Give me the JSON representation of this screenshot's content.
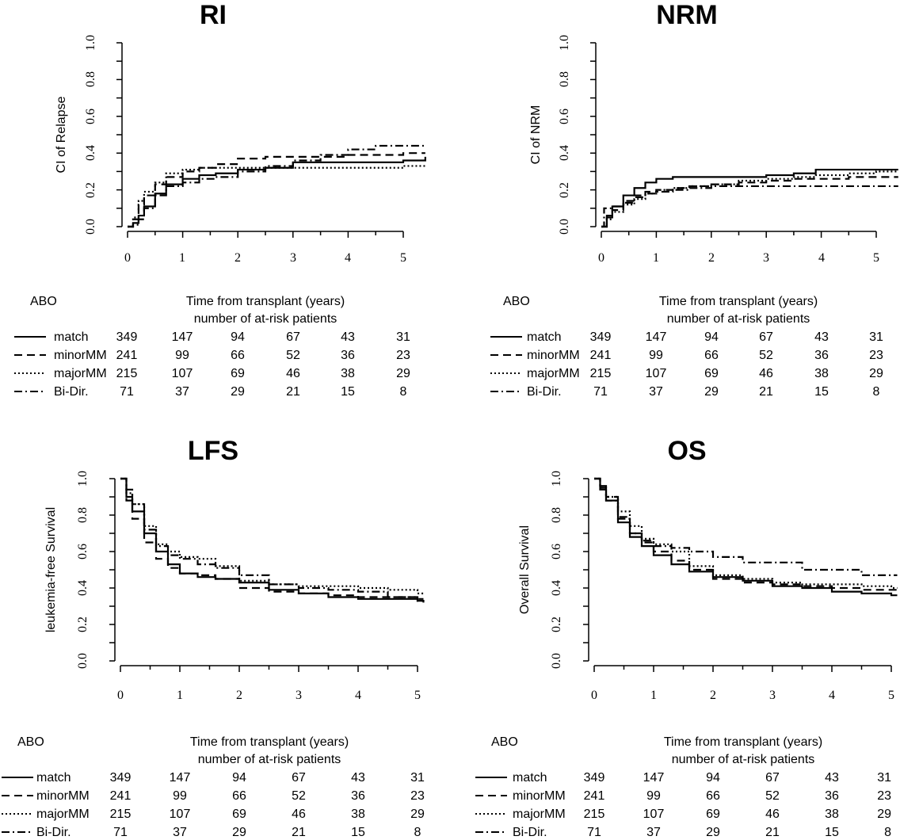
{
  "chart_data": [
    {
      "type": "line",
      "title": "RI",
      "ylabel": "CI of Relapse",
      "xlabel": "Time from transplant (years)",
      "ylim": [
        0,
        1
      ],
      "yticks": [
        "0.0",
        "0.2",
        "0.4",
        "0.6",
        "0.8",
        "1.0"
      ],
      "xticks": [
        "0",
        "1",
        "2",
        "3",
        "4",
        "5"
      ],
      "series": [
        {
          "name": "match",
          "style": "solid",
          "x": [
            0,
            0.1,
            0.2,
            0.3,
            0.5,
            0.7,
            1.0,
            1.3,
            1.6,
            2.0,
            2.5,
            3.0,
            3.5,
            4.0,
            4.5,
            5.0,
            5.4
          ],
          "y": [
            0,
            0.02,
            0.06,
            0.11,
            0.18,
            0.23,
            0.26,
            0.28,
            0.29,
            0.31,
            0.32,
            0.35,
            0.35,
            0.35,
            0.35,
            0.36,
            0.38
          ]
        },
        {
          "name": "minorMM",
          "style": "dashed",
          "x": [
            0,
            0.1,
            0.2,
            0.3,
            0.5,
            0.7,
            1.0,
            1.3,
            1.6,
            2.0,
            2.5,
            3.0,
            3.5,
            4.0,
            4.5,
            5.0,
            5.4
          ],
          "y": [
            0,
            0.04,
            0.12,
            0.17,
            0.23,
            0.27,
            0.3,
            0.32,
            0.34,
            0.37,
            0.38,
            0.38,
            0.38,
            0.39,
            0.39,
            0.4,
            0.4
          ]
        },
        {
          "name": "majorMM",
          "style": "dotted",
          "x": [
            0,
            0.1,
            0.2,
            0.3,
            0.5,
            0.7,
            1.0,
            1.3,
            1.6,
            2.0,
            2.5,
            3.0,
            3.5,
            4.0,
            4.5,
            5.0,
            5.4
          ],
          "y": [
            0,
            0.05,
            0.14,
            0.19,
            0.24,
            0.29,
            0.31,
            0.32,
            0.32,
            0.32,
            0.32,
            0.32,
            0.32,
            0.32,
            0.32,
            0.33,
            0.34
          ]
        },
        {
          "name": "Bi-Dir.",
          "style": "dashdot",
          "x": [
            0,
            0.1,
            0.2,
            0.3,
            0.5,
            0.7,
            1.0,
            1.3,
            1.6,
            2.0,
            2.5,
            3.0,
            3.5,
            4.0,
            4.5,
            5.0,
            5.4
          ],
          "y": [
            0,
            0.01,
            0.04,
            0.1,
            0.17,
            0.22,
            0.24,
            0.26,
            0.27,
            0.3,
            0.33,
            0.36,
            0.39,
            0.42,
            0.44,
            0.44,
            0.44
          ]
        }
      ],
      "risk_table": {
        "group_label": "ABO",
        "header": "Time from transplant (years)",
        "subheader": "number of at-risk patients",
        "rows": [
          {
            "name": "match",
            "counts": [
              "349",
              "147",
              "94",
              "67",
              "43",
              "31"
            ]
          },
          {
            "name": "minorMM",
            "counts": [
              "241",
              "99",
              "66",
              "52",
              "36",
              "23"
            ]
          },
          {
            "name": "majorMM",
            "counts": [
              "215",
              "107",
              "69",
              "46",
              "38",
              "29"
            ]
          },
          {
            "name": "Bi-Dir.",
            "counts": [
              "71",
              "37",
              "29",
              "21",
              "15",
              "8"
            ]
          }
        ]
      }
    },
    {
      "type": "line",
      "title": "NRM",
      "ylabel": "CI of NRM",
      "xlabel": "Time from transplant (years)",
      "ylim": [
        0,
        1
      ],
      "yticks": [
        "0.0",
        "0.2",
        "0.4",
        "0.6",
        "0.8",
        "1.0"
      ],
      "xticks": [
        "0",
        "1",
        "2",
        "3",
        "4",
        "5"
      ],
      "series": [
        {
          "name": "match",
          "style": "solid",
          "x": [
            0,
            0.1,
            0.2,
            0.4,
            0.6,
            0.8,
            1.0,
            1.3,
            1.6,
            2.0,
            2.5,
            3.0,
            3.5,
            3.9,
            4.5,
            5.0,
            5.4
          ],
          "y": [
            0,
            0.06,
            0.11,
            0.17,
            0.21,
            0.24,
            0.26,
            0.27,
            0.27,
            0.27,
            0.27,
            0.28,
            0.29,
            0.31,
            0.31,
            0.31,
            0.31
          ]
        },
        {
          "name": "minorMM",
          "style": "dashed",
          "x": [
            0,
            0.1,
            0.2,
            0.4,
            0.6,
            0.8,
            1.0,
            1.3,
            1.6,
            2.0,
            2.5,
            3.0,
            3.5,
            3.9,
            4.5,
            5.0,
            5.4
          ],
          "y": [
            0,
            0.05,
            0.09,
            0.14,
            0.17,
            0.19,
            0.2,
            0.21,
            0.22,
            0.23,
            0.24,
            0.25,
            0.26,
            0.26,
            0.27,
            0.27,
            0.27
          ]
        },
        {
          "name": "majorMM",
          "style": "dotted",
          "x": [
            0,
            0.1,
            0.2,
            0.4,
            0.6,
            0.8,
            1.0,
            1.3,
            1.6,
            2.0,
            2.5,
            3.0,
            3.5,
            3.9,
            4.5,
            5.0,
            5.4
          ],
          "y": [
            0,
            0.04,
            0.08,
            0.12,
            0.15,
            0.18,
            0.2,
            0.21,
            0.22,
            0.23,
            0.25,
            0.26,
            0.27,
            0.28,
            0.29,
            0.3,
            0.3
          ]
        },
        {
          "name": "Bi-Dir.",
          "style": "dashdot",
          "x": [
            0,
            0.05,
            0.2,
            0.4,
            0.6,
            0.8,
            1.0,
            1.3,
            1.6,
            2.0,
            2.5,
            3.0,
            3.5,
            4.0,
            4.5,
            5.0,
            5.4
          ],
          "y": [
            0,
            0.1,
            0.11,
            0.13,
            0.16,
            0.18,
            0.19,
            0.2,
            0.21,
            0.22,
            0.22,
            0.22,
            0.22,
            0.22,
            0.22,
            0.22,
            0.22
          ]
        }
      ],
      "risk_table": {
        "group_label": "ABO",
        "header": "Time from transplant (years)",
        "subheader": "number of at-risk patients",
        "rows": [
          {
            "name": "match",
            "counts": [
              "349",
              "147",
              "94",
              "67",
              "43",
              "31"
            ]
          },
          {
            "name": "minorMM",
            "counts": [
              "241",
              "99",
              "66",
              "52",
              "36",
              "23"
            ]
          },
          {
            "name": "majorMM",
            "counts": [
              "215",
              "107",
              "69",
              "46",
              "38",
              "29"
            ]
          },
          {
            "name": "Bi-Dir.",
            "counts": [
              "71",
              "37",
              "29",
              "21",
              "15",
              "8"
            ]
          }
        ]
      }
    },
    {
      "type": "line",
      "title": "LFS",
      "ylabel": "leukemia-free Survival",
      "xlabel": "Time from transplant (years)",
      "ylim": [
        0,
        1
      ],
      "yticks": [
        "0.0",
        "0.2",
        "0.4",
        "0.6",
        "0.8",
        "1.0"
      ],
      "xticks": [
        "0",
        "1",
        "2",
        "3",
        "4",
        "5"
      ],
      "series": [
        {
          "name": "match",
          "style": "solid",
          "x": [
            0,
            0.1,
            0.2,
            0.4,
            0.6,
            0.8,
            1.0,
            1.3,
            1.6,
            2.0,
            2.5,
            3.0,
            3.5,
            4.0,
            4.5,
            5.0,
            5.1
          ],
          "y": [
            1,
            0.9,
            0.82,
            0.7,
            0.6,
            0.53,
            0.48,
            0.46,
            0.45,
            0.43,
            0.39,
            0.37,
            0.35,
            0.34,
            0.34,
            0.33,
            0.32
          ]
        },
        {
          "name": "minorMM",
          "style": "dashed",
          "x": [
            0,
            0.1,
            0.2,
            0.4,
            0.6,
            0.8,
            1.0,
            1.3,
            1.6,
            2.0,
            2.5,
            3.0,
            3.5,
            4.0,
            4.5,
            5.0,
            5.1
          ],
          "y": [
            1,
            0.88,
            0.78,
            0.65,
            0.56,
            0.51,
            0.48,
            0.47,
            0.45,
            0.4,
            0.38,
            0.37,
            0.36,
            0.35,
            0.35,
            0.34,
            0.34
          ]
        },
        {
          "name": "majorMM",
          "style": "dotted",
          "x": [
            0,
            0.1,
            0.2,
            0.4,
            0.6,
            0.8,
            1.0,
            1.3,
            1.6,
            2.0,
            2.5,
            3.0,
            3.5,
            4.0,
            4.5,
            5.0,
            5.1
          ],
          "y": [
            1,
            0.92,
            0.86,
            0.74,
            0.64,
            0.6,
            0.57,
            0.56,
            0.52,
            0.44,
            0.42,
            0.41,
            0.41,
            0.4,
            0.39,
            0.37,
            0.37
          ]
        },
        {
          "name": "Bi-Dir.",
          "style": "dashdot",
          "x": [
            0,
            0.1,
            0.2,
            0.4,
            0.6,
            0.8,
            1.0,
            1.3,
            1.6,
            2.0,
            2.5,
            3.0,
            3.5,
            4.0,
            4.5,
            5.0,
            5.1
          ],
          "y": [
            1,
            0.94,
            0.86,
            0.72,
            0.63,
            0.58,
            0.56,
            0.53,
            0.51,
            0.47,
            0.42,
            0.4,
            0.39,
            0.38,
            0.35,
            0.33,
            0.32
          ]
        }
      ],
      "risk_table": {
        "group_label": "ABO",
        "header": "Time from transplant (years)",
        "subheader": "number of at-risk patients",
        "rows": [
          {
            "name": "match",
            "counts": [
              "349",
              "147",
              "94",
              "67",
              "43",
              "31"
            ]
          },
          {
            "name": "minorMM",
            "counts": [
              "241",
              "99",
              "66",
              "52",
              "36",
              "23"
            ]
          },
          {
            "name": "majorMM",
            "counts": [
              "215",
              "107",
              "69",
              "46",
              "38",
              "29"
            ]
          },
          {
            "name": "Bi-Dir.",
            "counts": [
              "71",
              "37",
              "29",
              "21",
              "15",
              "8"
            ]
          }
        ]
      }
    },
    {
      "type": "line",
      "title": "OS",
      "ylabel": "Overall Survival",
      "xlabel": "Time from transplant (years)",
      "ylim": [
        0,
        1
      ],
      "yticks": [
        "0.0",
        "0.2",
        "0.4",
        "0.6",
        "0.8",
        "1.0"
      ],
      "xticks": [
        "0",
        "1",
        "2",
        "3",
        "4",
        "5"
      ],
      "series": [
        {
          "name": "match",
          "style": "solid",
          "x": [
            0,
            0.1,
            0.2,
            0.4,
            0.6,
            0.8,
            1.0,
            1.3,
            1.6,
            2.0,
            2.5,
            3.0,
            3.5,
            4.0,
            4.5,
            5.0,
            5.1
          ],
          "y": [
            1,
            0.95,
            0.88,
            0.76,
            0.68,
            0.63,
            0.58,
            0.53,
            0.49,
            0.46,
            0.44,
            0.41,
            0.4,
            0.38,
            0.37,
            0.36,
            0.36
          ]
        },
        {
          "name": "minorMM",
          "style": "dashed",
          "x": [
            0,
            0.1,
            0.2,
            0.4,
            0.6,
            0.8,
            1.0,
            1.3,
            1.6,
            2.0,
            2.5,
            3.0,
            3.5,
            4.0,
            4.5,
            5.0,
            5.1
          ],
          "y": [
            1,
            0.96,
            0.9,
            0.79,
            0.7,
            0.65,
            0.6,
            0.55,
            0.5,
            0.45,
            0.43,
            0.42,
            0.41,
            0.4,
            0.39,
            0.39,
            0.39
          ]
        },
        {
          "name": "majorMM",
          "style": "dotted",
          "x": [
            0,
            0.1,
            0.2,
            0.4,
            0.6,
            0.8,
            1.0,
            1.3,
            1.6,
            2.0,
            2.5,
            3.0,
            3.5,
            4.0,
            4.5,
            5.0,
            5.1
          ],
          "y": [
            1,
            0.95,
            0.9,
            0.82,
            0.74,
            0.67,
            0.64,
            0.6,
            0.52,
            0.47,
            0.45,
            0.43,
            0.42,
            0.42,
            0.41,
            0.4,
            0.4
          ]
        },
        {
          "name": "Bi-Dir.",
          "style": "dashdot",
          "x": [
            0,
            0.1,
            0.2,
            0.4,
            0.6,
            0.8,
            1.0,
            1.3,
            1.6,
            2.0,
            2.5,
            3.0,
            3.5,
            4.0,
            4.5,
            5.0,
            5.1
          ],
          "y": [
            1,
            0.94,
            0.88,
            0.78,
            0.7,
            0.66,
            0.63,
            0.62,
            0.6,
            0.57,
            0.54,
            0.54,
            0.5,
            0.5,
            0.47,
            0.47,
            0.47
          ]
        }
      ],
      "risk_table": {
        "group_label": "ABO",
        "header": "Time from transplant (years)",
        "subheader": "number of at-risk patients",
        "rows": [
          {
            "name": "match",
            "counts": [
              "349",
              "147",
              "94",
              "67",
              "43",
              "31"
            ]
          },
          {
            "name": "minorMM",
            "counts": [
              "241",
              "99",
              "66",
              "52",
              "36",
              "23"
            ]
          },
          {
            "name": "majorMM",
            "counts": [
              "215",
              "107",
              "69",
              "46",
              "38",
              "29"
            ]
          },
          {
            "name": "Bi-Dir.",
            "counts": [
              "71",
              "37",
              "29",
              "21",
              "15",
              "8"
            ]
          }
        ]
      }
    }
  ]
}
